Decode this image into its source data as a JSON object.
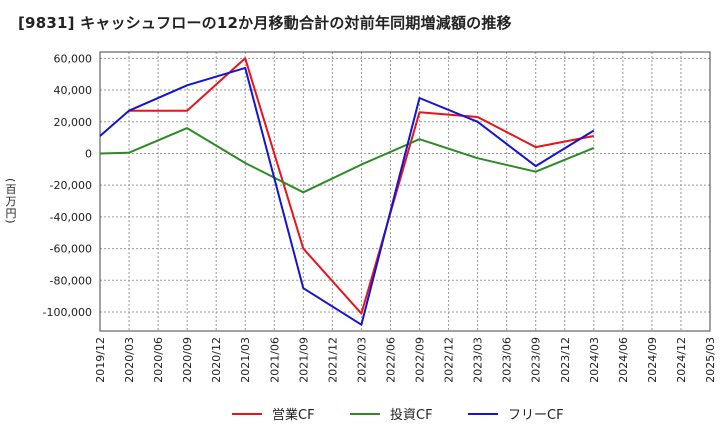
{
  "title": "[9831]  キャッシュフローの12か月移動合計の対前年同期増減額の推移",
  "ylabel_text": "(百万円)",
  "chart_data": {
    "type": "line",
    "categories": [
      "2019/12",
      "2020/03",
      "2020/06",
      "2020/09",
      "2020/12",
      "2021/03",
      "2021/06",
      "2021/09",
      "2021/12",
      "2022/03",
      "2022/06",
      "2022/09",
      "2022/12",
      "2023/03",
      "2023/06",
      "2023/09",
      "2023/12",
      "2024/03",
      "2024/06",
      "2024/09",
      "2024/12",
      "2025/03"
    ],
    "ylim": [
      -112000,
      64000
    ],
    "yticks": [
      60000,
      40000,
      20000,
      0,
      -20000,
      -40000,
      -60000,
      -80000,
      -100000
    ],
    "ytick_labels": [
      "60,000",
      "40,000",
      "20,000",
      "0",
      "-20,000",
      "-40,000",
      "-60,000",
      "-80,000",
      "-100,000"
    ],
    "ylabel": "(百万円)",
    "grid": true,
    "legend_position": "bottom",
    "series": [
      {
        "name": "営業CF",
        "color": "#e8141b",
        "values": [
          null,
          27000,
          null,
          27000,
          null,
          60000,
          null,
          -60000,
          null,
          -101000,
          null,
          26000,
          null,
          23000,
          null,
          4000,
          null,
          11000,
          null,
          null,
          null,
          null
        ]
      },
      {
        "name": "投資CF",
        "color": "#2e8b24",
        "values": [
          0,
          500,
          null,
          16000,
          null,
          -6000,
          null,
          -24500,
          null,
          -7000,
          null,
          9000,
          null,
          -3000,
          null,
          -11500,
          null,
          3500,
          null,
          null,
          null,
          null
        ]
      },
      {
        "name": "フリーCF",
        "color": "#1414d2",
        "values": [
          11000,
          27000,
          null,
          43000,
          null,
          54000,
          null,
          -85000,
          null,
          -108000,
          null,
          35000,
          null,
          20000,
          null,
          -8000,
          null,
          14500,
          null,
          null,
          null,
          null
        ]
      }
    ]
  }
}
